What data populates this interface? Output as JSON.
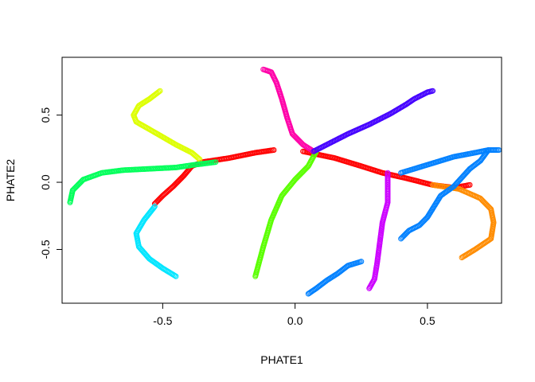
{
  "chart_data": {
    "type": "scatter",
    "title": "",
    "xlabel": "PHATE1",
    "ylabel": "PHATE2",
    "xlim": [
      -0.88,
      0.78
    ],
    "ylim": [
      -0.9,
      0.93
    ],
    "xticks": [
      "-0.5",
      "0.0",
      "0.5"
    ],
    "xtick_values": [
      -0.5,
      0.0,
      0.5
    ],
    "yticks": [
      "-0.5",
      "0.0",
      "0.5"
    ],
    "ytick_values": [
      -0.5,
      0.0,
      0.5
    ],
    "grid": false,
    "legend": "none",
    "marker": "open-circle",
    "series": [
      {
        "color": "#FF0000",
        "curves": [
          [
            [
              -0.08,
              0.24
            ],
            [
              -0.15,
              0.22
            ],
            [
              -0.25,
              0.18
            ],
            [
              -0.35,
              0.15
            ],
            [
              -0.39,
              0.12
            ]
          ],
          [
            [
              -0.39,
              0.12
            ],
            [
              -0.42,
              0.05
            ],
            [
              -0.46,
              -0.03
            ],
            [
              -0.5,
              -0.1
            ],
            [
              -0.53,
              -0.16
            ]
          ],
          [
            [
              0.03,
              0.23
            ],
            [
              0.15,
              0.18
            ],
            [
              0.25,
              0.12
            ],
            [
              0.33,
              0.07
            ],
            [
              0.42,
              0.03
            ],
            [
              0.52,
              -0.02
            ],
            [
              0.6,
              -0.04
            ],
            [
              0.66,
              -0.02
            ]
          ]
        ]
      },
      {
        "color": "#FF8C00",
        "curves": [
          [
            [
              0.52,
              -0.02
            ],
            [
              0.62,
              -0.05
            ],
            [
              0.7,
              -0.12
            ],
            [
              0.74,
              -0.2
            ],
            [
              0.75,
              -0.3
            ],
            [
              0.74,
              -0.42
            ],
            [
              0.68,
              -0.5
            ],
            [
              0.63,
              -0.56
            ]
          ]
        ]
      },
      {
        "color": "#DDFF00",
        "curves": [
          [
            [
              -0.51,
              0.68
            ],
            [
              -0.55,
              0.62
            ],
            [
              -0.59,
              0.57
            ],
            [
              -0.61,
              0.5
            ],
            [
              -0.6,
              0.45
            ],
            [
              -0.52,
              0.36
            ],
            [
              -0.45,
              0.28
            ],
            [
              -0.39,
              0.22
            ],
            [
              -0.36,
              0.17
            ]
          ]
        ]
      },
      {
        "color": "#00FF5A",
        "curves": [
          [
            [
              -0.85,
              -0.15
            ],
            [
              -0.84,
              -0.06
            ],
            [
              -0.8,
              0.02
            ],
            [
              -0.73,
              0.07
            ],
            [
              -0.65,
              0.09
            ],
            [
              -0.55,
              0.1
            ],
            [
              -0.45,
              0.11
            ],
            [
              -0.38,
              0.13
            ],
            [
              -0.3,
              0.15
            ]
          ]
        ]
      },
      {
        "color": "#00E5FF",
        "curves": [
          [
            [
              -0.53,
              -0.18
            ],
            [
              -0.57,
              -0.28
            ],
            [
              -0.6,
              -0.38
            ],
            [
              -0.59,
              -0.48
            ],
            [
              -0.55,
              -0.57
            ],
            [
              -0.5,
              -0.64
            ],
            [
              -0.45,
              -0.7
            ]
          ]
        ]
      },
      {
        "color": "#5AFF00",
        "curves": [
          [
            [
              0.08,
              0.23
            ],
            [
              0.05,
              0.12
            ],
            [
              0.0,
              0.02
            ],
            [
              -0.05,
              -0.1
            ],
            [
              -0.09,
              -0.28
            ],
            [
              -0.12,
              -0.48
            ],
            [
              -0.15,
              -0.7
            ]
          ]
        ]
      },
      {
        "color": "#FF00A8",
        "curves": [
          [
            [
              -0.12,
              0.84
            ],
            [
              -0.09,
              0.82
            ],
            [
              -0.07,
              0.74
            ],
            [
              -0.05,
              0.62
            ],
            [
              -0.03,
              0.48
            ],
            [
              -0.01,
              0.36
            ],
            [
              0.03,
              0.28
            ],
            [
              0.07,
              0.23
            ]
          ]
        ]
      },
      {
        "color": "#4400FF",
        "curves": [
          [
            [
              0.07,
              0.23
            ],
            [
              0.12,
              0.28
            ],
            [
              0.2,
              0.36
            ],
            [
              0.28,
              0.43
            ],
            [
              0.36,
              0.51
            ],
            [
              0.42,
              0.58
            ],
            [
              0.45,
              0.62
            ],
            [
              0.5,
              0.67
            ],
            [
              0.52,
              0.68
            ]
          ]
        ]
      },
      {
        "color": "#CC00FF",
        "curves": [
          [
            [
              0.35,
              0.07
            ],
            [
              0.35,
              -0.05
            ],
            [
              0.35,
              -0.15
            ],
            [
              0.33,
              -0.3
            ],
            [
              0.32,
              -0.45
            ],
            [
              0.31,
              -0.6
            ],
            [
              0.3,
              -0.72
            ],
            [
              0.28,
              -0.79
            ]
          ]
        ]
      },
      {
        "color": "#0080FF",
        "curves": [
          [
            [
              0.4,
              0.07
            ],
            [
              0.45,
              0.1
            ],
            [
              0.5,
              0.13
            ],
            [
              0.55,
              0.16
            ],
            [
              0.6,
              0.19
            ],
            [
              0.68,
              0.22
            ],
            [
              0.73,
              0.24
            ],
            [
              0.77,
              0.24
            ]
          ],
          [
            [
              0.73,
              0.24
            ],
            [
              0.7,
              0.16
            ],
            [
              0.66,
              0.1
            ],
            [
              0.6,
              -0.03
            ],
            [
              0.55,
              -0.1
            ],
            [
              0.5,
              -0.26
            ],
            [
              0.47,
              -0.32
            ],
            [
              0.43,
              -0.36
            ],
            [
              0.4,
              -0.42
            ]
          ],
          [
            [
              0.25,
              -0.59
            ],
            [
              0.2,
              -0.62
            ],
            [
              0.16,
              -0.68
            ],
            [
              0.12,
              -0.73
            ],
            [
              0.08,
              -0.79
            ],
            [
              0.05,
              -0.83
            ]
          ]
        ]
      }
    ]
  }
}
